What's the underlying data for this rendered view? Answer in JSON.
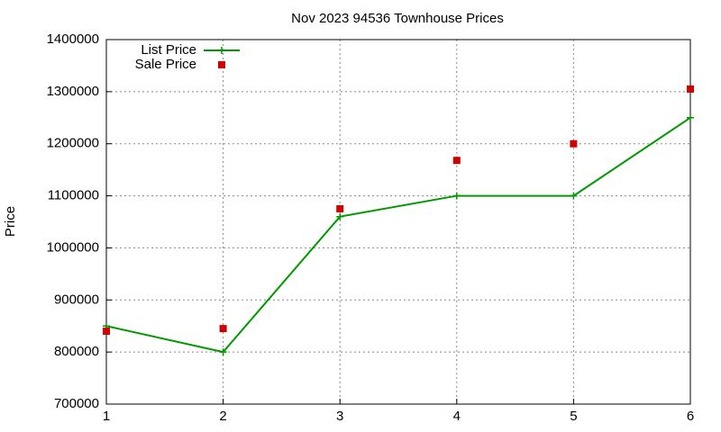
{
  "chart_data": {
    "type": "line",
    "title": "Nov 2023 94536 Townhouse Prices",
    "ylabel": "Price",
    "x": [
      1,
      2,
      3,
      4,
      5,
      6
    ],
    "series": [
      {
        "name": "List Price",
        "color": "#009900",
        "type": "line",
        "values": [
          850000,
          800000,
          1060000,
          1100000,
          1100000,
          1250000
        ]
      },
      {
        "name": "Sale Price",
        "color": "#cc0000",
        "type": "scatter",
        "values": [
          840000,
          845000,
          1075000,
          1168000,
          1200000,
          1305000
        ]
      }
    ],
    "xlim": [
      1,
      6
    ],
    "xticks": [
      1,
      2,
      3,
      4,
      5,
      6
    ],
    "ylim": [
      700000,
      1400000
    ],
    "yticks": [
      700000,
      800000,
      900000,
      1000000,
      1100000,
      1200000,
      1300000,
      1400000
    ],
    "grid": true,
    "legend": "top-left"
  }
}
